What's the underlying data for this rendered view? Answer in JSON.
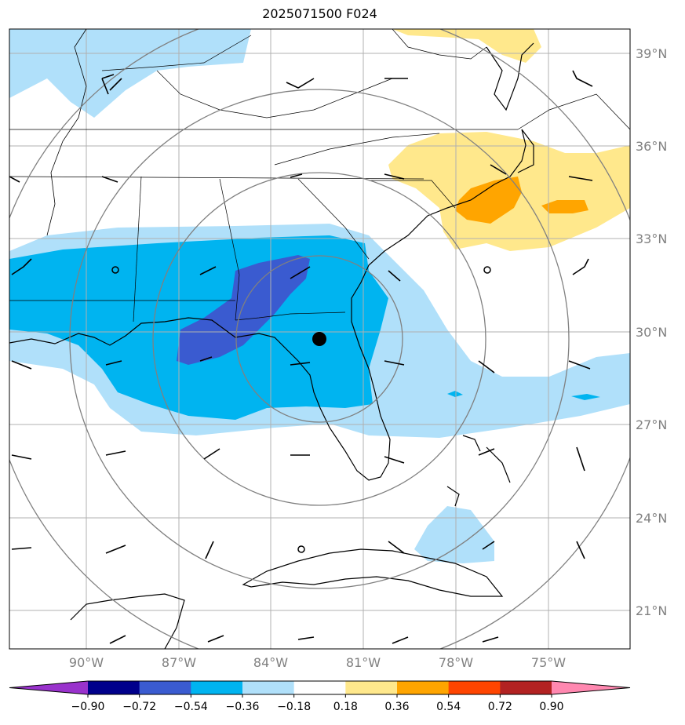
{
  "title": "2025071500 F024",
  "map": {
    "lat_labels": [
      "39°N",
      "36°N",
      "33°N",
      "30°N",
      "27°N",
      "24°N",
      "21°N"
    ],
    "lon_labels": [
      "90°W",
      "87°W",
      "84°W",
      "81°W",
      "78°W",
      "75°W"
    ],
    "center_marker": {
      "lat": 29.8,
      "lon": -82.4
    },
    "station_circles": 3
  },
  "colorbar": {
    "tick_labels": [
      "−0.90",
      "−0.72",
      "−0.54",
      "−0.36",
      "−0.18",
      "0.18",
      "0.36",
      "0.54",
      "0.72",
      "0.90"
    ],
    "bins": [
      {
        "range": "< -0.90",
        "color": "#9932cc"
      },
      {
        "range": "-0.90 to -0.72",
        "color": "#00008b"
      },
      {
        "range": "-0.72 to -0.54",
        "color": "#3a5bd0"
      },
      {
        "range": "-0.54 to -0.36",
        "color": "#00b4f0"
      },
      {
        "range": "-0.36 to -0.18",
        "color": "#b0e0fa"
      },
      {
        "range": "-0.18 to 0.18",
        "color": "#ffffff"
      },
      {
        "range": "0.18 to 0.36",
        "color": "#ffe88c"
      },
      {
        "range": "0.36 to 0.54",
        "color": "#ffa500"
      },
      {
        "range": "0.54 to 0.72",
        "color": "#ff4500"
      },
      {
        "range": "0.72 to 0.90",
        "color": "#b22222"
      },
      {
        "range": "> 0.90",
        "color": "#ff88b0"
      }
    ]
  }
}
